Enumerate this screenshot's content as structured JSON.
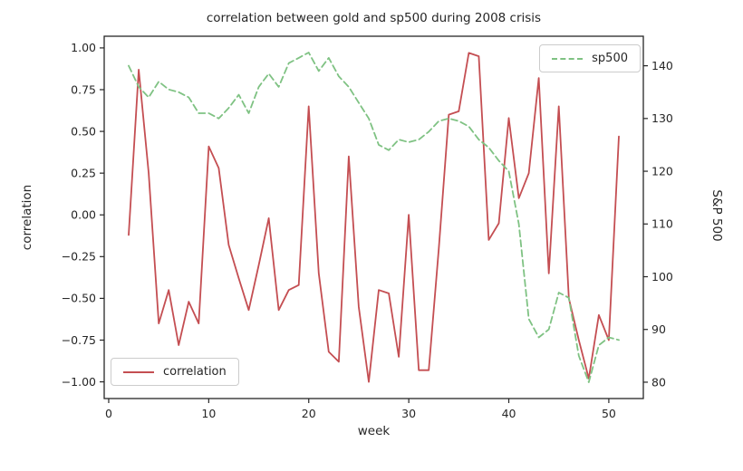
{
  "chart_data": {
    "type": "line",
    "title": "correlation between gold and sp500 during 2008 crisis",
    "xlabel": "week",
    "ylabel": "correlation",
    "y2label": "S&P 500",
    "grid": false,
    "axis_color": "#262626",
    "x": [
      2,
      3,
      4,
      5,
      6,
      7,
      8,
      9,
      10,
      11,
      12,
      13,
      14,
      15,
      16,
      17,
      18,
      19,
      20,
      21,
      22,
      23,
      24,
      25,
      26,
      27,
      28,
      29,
      30,
      31,
      32,
      33,
      34,
      35,
      36,
      37,
      38,
      39,
      40,
      41,
      42,
      43,
      44,
      45,
      46,
      47,
      48,
      49,
      50,
      51
    ],
    "series": [
      {
        "name": "correlation",
        "axis": "left",
        "style": "solid",
        "color": "#c44e52",
        "values": [
          -0.12,
          0.87,
          0.25,
          -0.65,
          -0.45,
          -0.78,
          -0.52,
          -0.65,
          0.41,
          0.28,
          -0.18,
          -0.38,
          -0.57,
          -0.3,
          -0.02,
          -0.57,
          -0.45,
          -0.42,
          0.65,
          -0.35,
          -0.82,
          -0.88,
          0.35,
          -0.55,
          -1.0,
          -0.45,
          -0.47,
          -0.85,
          0.0,
          -0.93,
          -0.93,
          -0.2,
          0.6,
          0.62,
          0.97,
          0.95,
          -0.15,
          -0.05,
          0.58,
          0.1,
          0.25,
          0.82,
          -0.35,
          0.65,
          -0.5,
          -0.75,
          -0.98,
          -0.6,
          -0.75,
          0.47
        ]
      },
      {
        "name": "sp500",
        "axis": "right",
        "style": "dashed",
        "color": "#7fc283",
        "values": [
          140,
          136,
          134,
          137,
          135.5,
          135,
          134,
          131,
          131,
          130,
          132,
          134.5,
          131,
          136,
          138.5,
          136,
          140.5,
          141.5,
          142.5,
          139,
          141.5,
          138,
          136,
          133,
          130,
          125,
          124,
          126,
          125.5,
          126,
          127.5,
          129.5,
          130,
          129.5,
          128.5,
          126,
          124.5,
          122,
          120,
          110,
          92,
          88.5,
          90,
          97,
          96,
          85,
          80,
          87,
          88.5,
          88
        ]
      }
    ],
    "xlim": [
      -0.45,
      53.45
    ],
    "ylim": [
      -1.1,
      1.07
    ],
    "y2lim": [
      76.9,
      145.6
    ],
    "xticks": {
      "values": [
        0,
        10,
        20,
        30,
        40,
        50
      ],
      "labels": [
        "0",
        "10",
        "20",
        "30",
        "40",
        "50"
      ]
    },
    "yticks": {
      "values": [
        1.0,
        0.75,
        0.5,
        0.25,
        0.0,
        -0.25,
        -0.5,
        -0.75,
        -1.0
      ],
      "labels": [
        "1.00",
        "0.75",
        "0.50",
        "0.25",
        "0.00",
        "−0.25",
        "−0.50",
        "−0.75",
        "−1.00"
      ]
    },
    "y2ticks": {
      "values": [
        140,
        130,
        120,
        110,
        100,
        90,
        80
      ],
      "labels": [
        "140",
        "130",
        "120",
        "110",
        "100",
        "90",
        "80"
      ]
    },
    "legends": [
      {
        "label": "sp500",
        "position": "upper right"
      },
      {
        "label": "correlation",
        "position": "lower left"
      }
    ]
  }
}
